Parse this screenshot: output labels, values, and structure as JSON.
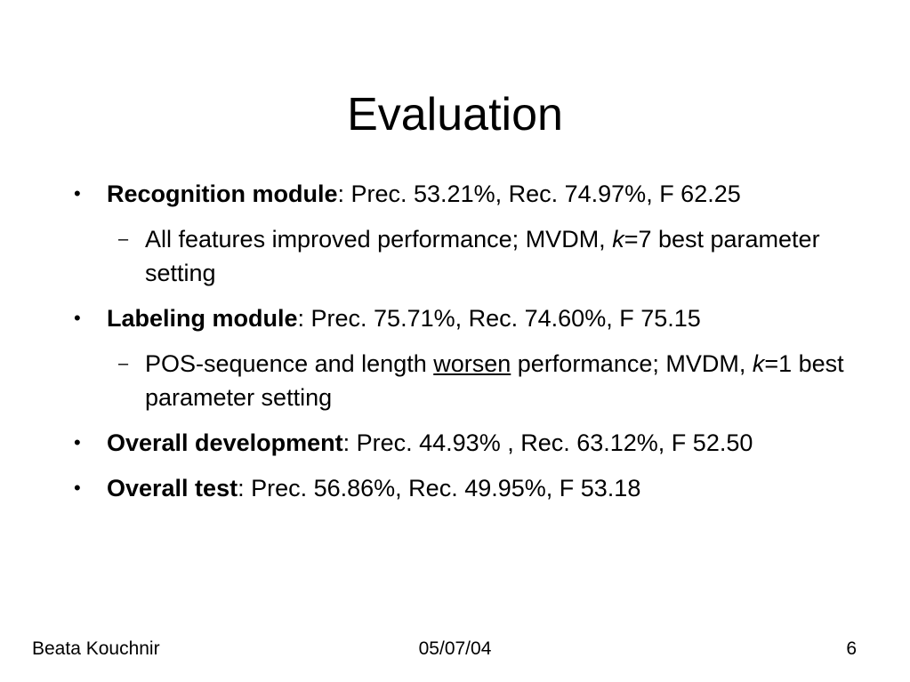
{
  "slide": {
    "title": "Evaluation",
    "bullets": [
      {
        "bold": "Recognition module",
        "rest": ": Prec. 53.21%, Rec. 74.97%, F 62.25"
      },
      {
        "sub_pre": "All features improved performance; MVDM, ",
        "sub_italic": "k",
        "sub_post": "=7 best parameter setting"
      },
      {
        "bold": "Labeling module",
        "rest": ": Prec. 75.71%, Rec.  74.60%, F 75.15"
      },
      {
        "sub_pre": "POS-sequence and length ",
        "sub_underline": "worsen",
        "sub_mid": " performance; MVDM, ",
        "sub_italic": "k",
        "sub_post": "=1 best parameter setting"
      },
      {
        "bold": "Overall development",
        "rest": ": Prec. 44.93% , Rec.  63.12%, F 52.50"
      },
      {
        "bold": "Overall test",
        "rest": ": Prec.  56.86%, Rec. 49.95%, F 53.18"
      }
    ]
  },
  "footer": {
    "author": "Beata Kouchnir",
    "date": "05/07/04",
    "page": "6"
  },
  "glyphs": {
    "bullet": "•",
    "dash": "–"
  }
}
